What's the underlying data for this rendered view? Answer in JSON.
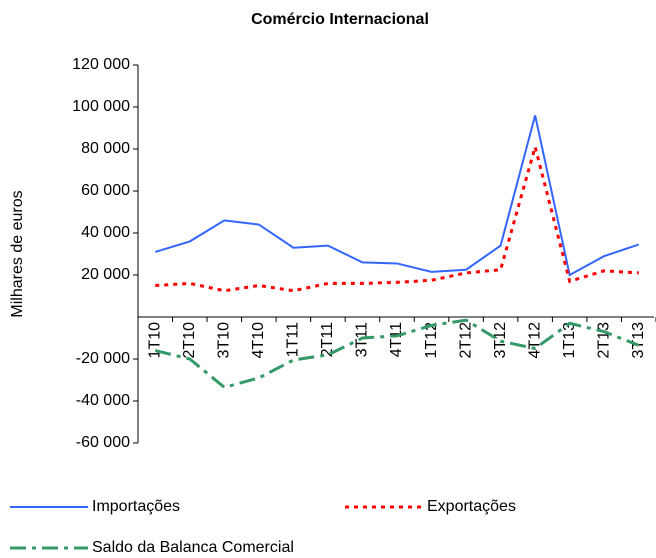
{
  "chart_data": {
    "type": "line",
    "title": "Comércio Internacional",
    "y_label": "Milhares de euros",
    "categories": [
      "1T10",
      "2T10",
      "3T10",
      "4T10",
      "1T11",
      "2T11",
      "3T11",
      "4T11",
      "1T12",
      "2T12",
      "3T12",
      "4T12",
      "1T13",
      "2T13",
      "3T13"
    ],
    "ylim": [
      -60000,
      120000
    ],
    "yticks": [
      {
        "value": -60000,
        "label": "-60 000"
      },
      {
        "value": -40000,
        "label": "-40 000"
      },
      {
        "value": -20000,
        "label": "-20 000"
      },
      {
        "value": 20000,
        "label": "20 000"
      },
      {
        "value": 40000,
        "label": "40 000"
      },
      {
        "value": 60000,
        "label": "60 000"
      },
      {
        "value": 80000,
        "label": "80 000"
      },
      {
        "value": 100000,
        "label": "100 000"
      },
      {
        "value": 120000,
        "label": "120 000"
      }
    ],
    "series": [
      {
        "name": "Importações",
        "color": "#3366ff",
        "dash": "none",
        "values": [
          31000,
          36000,
          46000,
          44000,
          33000,
          34000,
          26000,
          25500,
          21500,
          22500,
          34000,
          96000,
          20000,
          29000,
          34500
        ]
      },
      {
        "name": "Exportações",
        "color": "#ff0000",
        "dash": "4 5",
        "values": [
          15000,
          16000,
          12500,
          15000,
          12500,
          16000,
          16000,
          16500,
          17500,
          21000,
          22500,
          81000,
          17000,
          22000,
          21000
        ]
      },
      {
        "name": "Saldo da Balanca Comercial",
        "color": "#339966",
        "dash": "16 6 4 6",
        "values": [
          -16000,
          -20000,
          -33500,
          -29000,
          -20500,
          -18000,
          -10000,
          -9000,
          -4000,
          -1500,
          -11500,
          -15000,
          -3000,
          -7000,
          -13500
        ]
      }
    ]
  }
}
